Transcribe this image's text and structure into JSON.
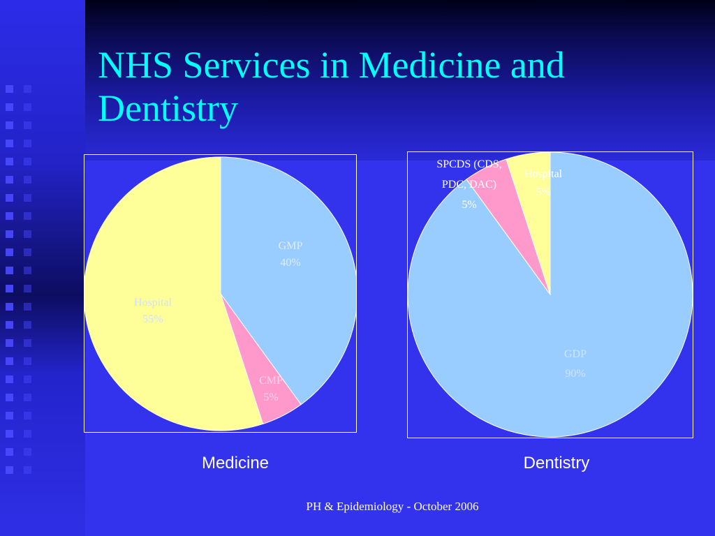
{
  "slide": {
    "title": "NHS Services in Medicine and Dentistry",
    "footer": "PH & Epidemiology - October 2006"
  },
  "colors": {
    "background": "#3333ee",
    "title": "#00ffff",
    "light_blue_slice": "#99ccff",
    "pink_slice": "#ff99cc",
    "yellow_slice": "#ffff99"
  },
  "chart_data": [
    {
      "type": "pie",
      "caption": "Medicine",
      "slices": [
        {
          "label": "GMP",
          "value": 40,
          "value_label": "40%",
          "color": "#99ccff"
        },
        {
          "label": "CMP",
          "value": 5,
          "value_label": "5%",
          "color": "#ff99cc"
        },
        {
          "label": "Hospital",
          "value": 55,
          "value_label": "55%",
          "color": "#ffff99"
        }
      ]
    },
    {
      "type": "pie",
      "caption": "Dentistry",
      "slices": [
        {
          "label": "GDP",
          "value": 90,
          "value_label": "90%",
          "color": "#99ccff"
        },
        {
          "label": "SPCDS (CDS, PDC, DAC)",
          "value": 5,
          "value_label": "5%",
          "color": "#ff99cc"
        },
        {
          "label": "Hospital",
          "value": 5,
          "value_label": "5%",
          "color": "#ffff99"
        }
      ]
    }
  ]
}
